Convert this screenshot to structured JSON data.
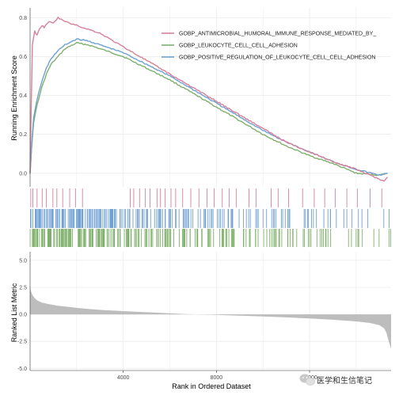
{
  "chart_data": [
    {
      "panel": "running-enrichment-score",
      "type": "line",
      "ylabel": "Running Enrichment Score",
      "ylim": [
        -0.07,
        0.85
      ],
      "yticks": [
        0.0,
        0.2,
        0.4,
        0.6,
        0.8
      ],
      "ytick_labels": [
        "0.0",
        "0.2",
        "0.4",
        "0.6",
        "0.8"
      ],
      "xlim": [
        0,
        15500
      ],
      "grid": true,
      "legend_position": "top-right",
      "series": [
        {
          "name": "GOBP_ANTIMICROBIAL_HUMORAL_IMMUNE_RESPONSE_MEDIATED_BY_ANTIMICROBIAL_PEPTIDE",
          "legend_label": "GOBP_ANTIMICROBIAL_HUMORAL_IMMUNE_RESPONSE_MEDIATED_BY_",
          "color": "#d5819a",
          "x": [
            0,
            40,
            100,
            200,
            300,
            400,
            500,
            600,
            800,
            1000,
            1200,
            1500,
            2000,
            2500,
            3000,
            4000,
            5000,
            6000,
            7000,
            8000,
            9000,
            10000,
            11000,
            12000,
            13000,
            14000,
            15000,
            15200,
            15350
          ],
          "values": [
            0.0,
            0.3,
            0.66,
            0.73,
            0.71,
            0.74,
            0.76,
            0.75,
            0.78,
            0.77,
            0.8,
            0.78,
            0.76,
            0.74,
            0.72,
            0.65,
            0.58,
            0.51,
            0.44,
            0.37,
            0.3,
            0.23,
            0.16,
            0.11,
            0.06,
            0.02,
            -0.03,
            -0.04,
            -0.02
          ]
        },
        {
          "name": "GOBP_LEUKOCYTE_CELL_CELL_ADHESION",
          "legend_label": "GOBP_LEUKOCYTE_CELL_CELL_ADHESION",
          "color": "#7fb06c",
          "x": [
            0,
            60,
            150,
            300,
            500,
            700,
            900,
            1200,
            1500,
            2000,
            2500,
            3000,
            3500,
            4000,
            5000,
            6000,
            7000,
            8000,
            9000,
            10000,
            11000,
            12000,
            13000,
            14000,
            15000,
            15350
          ],
          "values": [
            0.0,
            0.12,
            0.26,
            0.35,
            0.44,
            0.51,
            0.56,
            0.6,
            0.64,
            0.67,
            0.66,
            0.64,
            0.62,
            0.6,
            0.54,
            0.48,
            0.41,
            0.34,
            0.27,
            0.2,
            0.14,
            0.09,
            0.05,
            0.0,
            -0.01,
            0.0
          ]
        },
        {
          "name": "GOBP_POSITIVE_REGULATION_OF_LEUKOCYTE_CELL_CELL_ADHESION",
          "legend_label": "GOBP_POSITIVE_REGULATION_OF_LEUKOCYTE_CELL_CELL_ADHESION",
          "color": "#6fa0d2",
          "x": [
            0,
            60,
            150,
            300,
            500,
            700,
            900,
            1200,
            1500,
            2000,
            2500,
            3000,
            3500,
            4000,
            5000,
            6000,
            7000,
            8000,
            9000,
            10000,
            11000,
            12000,
            13000,
            14000,
            15000,
            15350
          ],
          "values": [
            0.0,
            0.13,
            0.28,
            0.38,
            0.47,
            0.54,
            0.59,
            0.63,
            0.66,
            0.69,
            0.68,
            0.66,
            0.64,
            0.62,
            0.56,
            0.5,
            0.43,
            0.36,
            0.29,
            0.22,
            0.16,
            0.11,
            0.06,
            0.02,
            -0.01,
            0.0
          ]
        }
      ]
    },
    {
      "panel": "gene-set-hits",
      "type": "barcode",
      "xlim": [
        0,
        15500
      ],
      "rows": [
        {
          "name": "GOBP_ANTIMICROBIAL_HUMORAL_IMMUNE_RESPONSE_MEDIATED_BY_ANTIMICROBIAL_PEPTIDE",
          "color": "#d5819a",
          "positions": [
            30,
            120,
            300,
            520,
            700,
            980,
            1150,
            1400,
            1700,
            1950,
            2250,
            4300,
            4450,
            4700,
            4950,
            5150,
            5450,
            5600,
            5800,
            6050,
            6250,
            6550,
            6900,
            7250,
            7600,
            7900,
            8250,
            8550,
            8850,
            9400,
            9700,
            10350,
            10650,
            11100,
            11700,
            12200,
            12650,
            13100,
            13600,
            14050,
            14600,
            15100
          ]
        },
        {
          "name": "GOBP_POSITIVE_REGULATION_OF_LEUKOCYTE_CELL_CELL_ADHESION",
          "color": "#6fa0d2",
          "density": [
            1.0,
            0.95,
            0.9,
            0.85,
            0.75,
            0.6,
            0.55,
            0.5,
            0.45,
            0.45,
            0.4,
            0.35,
            0.3,
            0.3,
            0.25,
            0.25,
            0.2,
            0.2,
            0.2,
            0.15,
            0.15,
            0.1
          ]
        },
        {
          "name": "GOBP_LEUKOCYTE_CELL_CELL_ADHESION",
          "color": "#7fb06c",
          "density": [
            1.0,
            1.0,
            0.95,
            0.9,
            0.8,
            0.7,
            0.6,
            0.55,
            0.5,
            0.5,
            0.45,
            0.4,
            0.35,
            0.35,
            0.3,
            0.3,
            0.25,
            0.25,
            0.2,
            0.2,
            0.15,
            0.12
          ]
        }
      ]
    },
    {
      "panel": "ranked-list-metric",
      "type": "area",
      "ylabel": "Ranked List Metric",
      "xlabel": "Rank in Ordered Dataset",
      "ylim": [
        -5.2,
        5.8
      ],
      "yticks": [
        5.0,
        2.5,
        0.0,
        -2.5,
        -5.0
      ],
      "ytick_labels": [
        "5.0",
        "2.5",
        "0.0",
        "-2.5",
        "-5.0"
      ],
      "xlim": [
        0,
        15500
      ],
      "xticks": [
        4000,
        8000,
        12000
      ],
      "xtick_labels": [
        "4000",
        "8000",
        "12000"
      ],
      "color": "#bdbdbd",
      "x": [
        0,
        30,
        100,
        200,
        300,
        500,
        800,
        1200,
        1600,
        2000,
        2500,
        3000,
        4000,
        5000,
        6000,
        6700,
        8000,
        9000,
        10000,
        11000,
        12000,
        13000,
        14000,
        14600,
        15000,
        15200,
        15300,
        15400,
        15500
      ],
      "values": [
        2.6,
        2.2,
        1.8,
        1.5,
        1.3,
        1.1,
        0.95,
        0.8,
        0.7,
        0.6,
        0.5,
        0.42,
        0.3,
        0.2,
        0.1,
        0.02,
        -0.05,
        -0.12,
        -0.2,
        -0.28,
        -0.38,
        -0.5,
        -0.65,
        -0.8,
        -1.0,
        -1.3,
        -1.7,
        -2.5,
        -3.2
      ]
    }
  ],
  "watermark": {
    "text": "医学和生信笔记",
    "icon": "wechat-logo-icon"
  }
}
